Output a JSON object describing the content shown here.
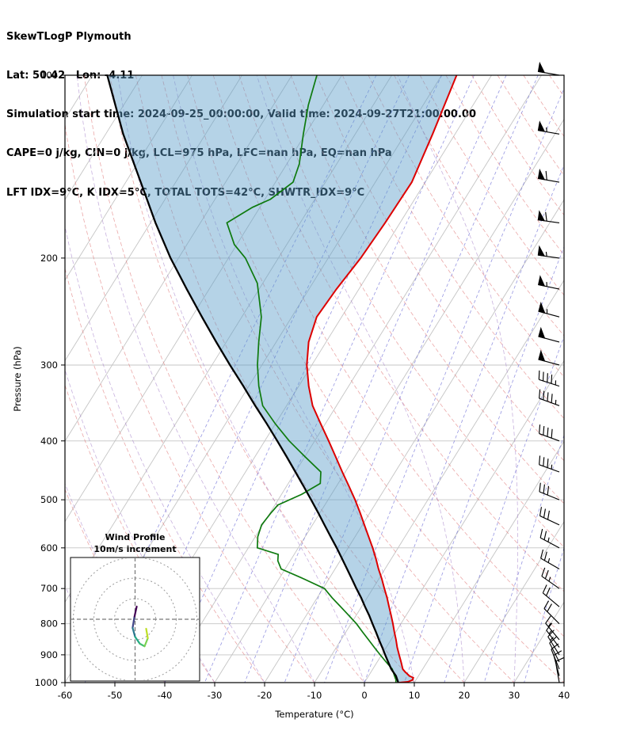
{
  "header": {
    "title": "SkewTLogP Plymouth",
    "location": "Lat: 50.42   Lon: -4.11",
    "times": "Simulation start time: 2024-09-25_00:00:00, Valid time: 2024-09-27T21:00:00.00",
    "stability1": "CAPE=0 j/kg, CIN=0 j/kg, LCL=975 hPa, LFC=nan hPa, EQ=nan hPa",
    "stability2": "LFT IDX=9°C, K IDX=5°C, TOTAL TOTS=42°C, SHWTR_IDX=9°C"
  },
  "axes": {
    "xlabel": "Temperature (°C)",
    "ylabel": "Pressure (hPa)",
    "x_ticks": [
      -60,
      -50,
      -40,
      -30,
      -20,
      -10,
      0,
      10,
      20,
      30,
      40
    ],
    "p_ticks": [
      100,
      200,
      300,
      400,
      500,
      600,
      700,
      800,
      900,
      1000
    ],
    "xlim": [
      -60,
      40
    ],
    "plim": [
      100,
      1000
    ]
  },
  "chart_data": {
    "type": "skewt-logp",
    "title": "SkewTLogP Plymouth",
    "station_lat": 50.42,
    "station_lon": -4.11,
    "xlabel": "Temperature (°C)",
    "ylabel": "Pressure (hPa)",
    "xlim": [
      -60,
      40
    ],
    "pressure_range_hpa": [
      100,
      1000
    ],
    "grid": "isotherms, isobars, dry adiabats, moist adiabats, mixing-ratio lines",
    "temperature_pC": [
      [
        1000,
        7.0
      ],
      [
        997,
        8.6
      ],
      [
        990,
        9.3
      ],
      [
        982,
        9.2
      ],
      [
        975,
        8.2
      ],
      [
        960,
        6.8
      ],
      [
        950,
        6.0
      ],
      [
        925,
        4.8
      ],
      [
        900,
        3.5
      ],
      [
        875,
        2.2
      ],
      [
        850,
        1.0
      ],
      [
        825,
        -0.3
      ],
      [
        800,
        -1.6
      ],
      [
        775,
        -3.0
      ],
      [
        750,
        -4.5
      ],
      [
        725,
        -6.0
      ],
      [
        700,
        -7.7
      ],
      [
        675,
        -9.4
      ],
      [
        650,
        -11.3
      ],
      [
        625,
        -13.1
      ],
      [
        600,
        -15.1
      ],
      [
        575,
        -17.3
      ],
      [
        550,
        -19.6
      ],
      [
        525,
        -22.0
      ],
      [
        500,
        -24.6
      ],
      [
        475,
        -27.5
      ],
      [
        450,
        -30.6
      ],
      [
        425,
        -33.8
      ],
      [
        400,
        -37.2
      ],
      [
        375,
        -40.9
      ],
      [
        350,
        -44.8
      ],
      [
        325,
        -48.0
      ],
      [
        300,
        -51.0
      ],
      [
        275,
        -53.5
      ],
      [
        250,
        -55.0
      ],
      [
        225,
        -54.5
      ],
      [
        200,
        -53.5
      ],
      [
        175,
        -53.0
      ],
      [
        150,
        -52.7
      ],
      [
        125,
        -54.5
      ],
      [
        100,
        -57.0
      ]
    ],
    "dewpoint_pC": [
      [
        1000,
        6.3
      ],
      [
        990,
        6.0
      ],
      [
        975,
        5.2
      ],
      [
        950,
        3.9
      ],
      [
        925,
        1.8
      ],
      [
        900,
        -0.3
      ],
      [
        875,
        -2.4
      ],
      [
        850,
        -4.5
      ],
      [
        825,
        -6.7
      ],
      [
        800,
        -8.9
      ],
      [
        775,
        -11.5
      ],
      [
        750,
        -14.2
      ],
      [
        725,
        -17.0
      ],
      [
        700,
        -19.7
      ],
      [
        675,
        -25.0
      ],
      [
        650,
        -30.8
      ],
      [
        630,
        -32.5
      ],
      [
        615,
        -33.2
      ],
      [
        600,
        -38.2
      ],
      [
        575,
        -39.5
      ],
      [
        550,
        -40.2
      ],
      [
        525,
        -39.8
      ],
      [
        510,
        -39.4
      ],
      [
        490,
        -36.0
      ],
      [
        470,
        -33.6
      ],
      [
        450,
        -34.9
      ],
      [
        425,
        -39.9
      ],
      [
        400,
        -45.1
      ],
      [
        375,
        -50.0
      ],
      [
        350,
        -54.8
      ],
      [
        325,
        -58.0
      ],
      [
        300,
        -60.9
      ],
      [
        275,
        -63.5
      ],
      [
        250,
        -66.1
      ],
      [
        235,
        -68.5
      ],
      [
        220,
        -71.1
      ],
      [
        200,
        -76.6
      ],
      [
        190,
        -80.5
      ],
      [
        175,
        -84.7
      ],
      [
        165,
        -81.5
      ],
      [
        160,
        -78.9
      ],
      [
        150,
        -76.5
      ],
      [
        140,
        -77.5
      ],
      [
        125,
        -80.4
      ],
      [
        112,
        -83.0
      ],
      [
        100,
        -85.0
      ]
    ],
    "parcel_pC": [
      [
        1000,
        6.8
      ],
      [
        975,
        5.5
      ],
      [
        950,
        3.7
      ],
      [
        925,
        2.2
      ],
      [
        900,
        0.7
      ],
      [
        875,
        -0.8
      ],
      [
        850,
        -2.4
      ],
      [
        825,
        -4.0
      ],
      [
        800,
        -5.7
      ],
      [
        775,
        -7.4
      ],
      [
        750,
        -9.3
      ],
      [
        725,
        -11.2
      ],
      [
        700,
        -13.3
      ],
      [
        675,
        -15.4
      ],
      [
        650,
        -17.6
      ],
      [
        625,
        -19.9
      ],
      [
        600,
        -22.3
      ],
      [
        575,
        -24.9
      ],
      [
        550,
        -27.6
      ],
      [
        525,
        -30.4
      ],
      [
        500,
        -33.4
      ],
      [
        475,
        -36.6
      ],
      [
        450,
        -40.0
      ],
      [
        425,
        -43.6
      ],
      [
        400,
        -47.5
      ],
      [
        375,
        -51.7
      ],
      [
        350,
        -56.3
      ],
      [
        325,
        -61.1
      ],
      [
        300,
        -66.4
      ],
      [
        275,
        -72.0
      ],
      [
        250,
        -78.0
      ],
      [
        225,
        -84.5
      ],
      [
        200,
        -91.6
      ],
      [
        175,
        -99.0
      ],
      [
        150,
        -107.0
      ],
      [
        125,
        -116.5
      ],
      [
        100,
        -127.0
      ]
    ],
    "wind_p_kt_dir": [
      [
        100,
        50,
        280
      ],
      [
        125,
        55,
        280
      ],
      [
        150,
        60,
        280
      ],
      [
        175,
        60,
        278
      ],
      [
        200,
        55,
        278
      ],
      [
        225,
        55,
        282
      ],
      [
        250,
        55,
        285
      ],
      [
        275,
        50,
        285
      ],
      [
        300,
        50,
        285
      ],
      [
        325,
        45,
        288
      ],
      [
        350,
        45,
        290
      ],
      [
        400,
        40,
        290
      ],
      [
        450,
        35,
        290
      ],
      [
        500,
        30,
        292
      ],
      [
        550,
        30,
        295
      ],
      [
        600,
        25,
        298
      ],
      [
        650,
        25,
        300
      ],
      [
        700,
        25,
        305
      ],
      [
        750,
        20,
        310
      ],
      [
        800,
        20,
        315
      ],
      [
        850,
        15,
        320
      ],
      [
        875,
        15,
        323
      ],
      [
        900,
        15,
        328
      ],
      [
        925,
        12,
        333
      ],
      [
        950,
        10,
        338
      ],
      [
        975,
        10,
        345
      ],
      [
        1000,
        10,
        350
      ]
    ],
    "hodograph": {
      "title1": "Wind Profile",
      "title2": "10m/s increment",
      "ring_interval_ms": 10,
      "rings_ms": [
        10,
        20,
        30
      ],
      "trace_uv_ms": [
        [
          0.8,
          6.2
        ],
        [
          -0.4,
          0.8
        ],
        [
          -1.2,
          -4.2
        ],
        [
          0.0,
          -8.5
        ],
        [
          2.3,
          -11.9
        ],
        [
          4.6,
          -13.1
        ],
        [
          6.2,
          -9.2
        ],
        [
          5.4,
          -4.6
        ]
      ]
    }
  },
  "colors": {
    "temperature": "#dd0000",
    "dewpoint": "#0e7a0e",
    "parcel": "#000000",
    "shade": "#5b9ec9",
    "isotherm": "#c4c4c4",
    "isobar": "#c4c4c4",
    "dry_adiabat": "#e07a7a",
    "moist_adiabat": "#a37ec8",
    "mixing_ratio": "#6b6bd6",
    "barb": "#000000",
    "hodo_ring": "#9a9a9a",
    "hodo_cross": "#777777",
    "hodo_trace": [
      "#440154",
      "#414487",
      "#2a788e",
      "#22a884",
      "#44bf70",
      "#7ad151",
      "#bddf26"
    ]
  }
}
